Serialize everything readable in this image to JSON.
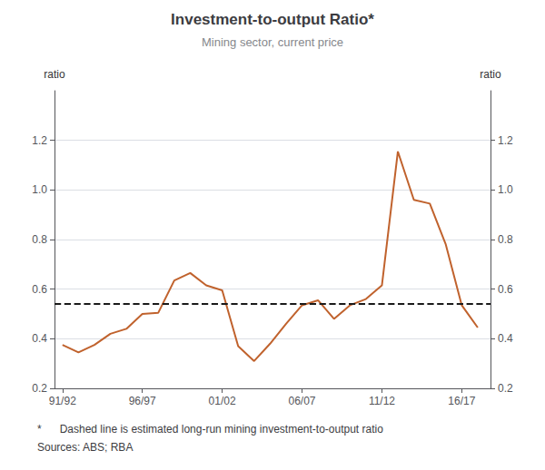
{
  "chart_data": {
    "type": "line",
    "title": "Investment-to-output Ratio*",
    "subtitle": "Mining sector, current price",
    "ylabel": "ratio",
    "y2label": "ratio",
    "annotations": [
      "*      Dashed line is estimated long-run mining investment-to-output ratio",
      "Sources: ABS; RBA"
    ],
    "x": [
      1991,
      1992,
      1993,
      1994,
      1995,
      1996,
      1997,
      1998,
      1999,
      2000,
      2001,
      2002,
      2003,
      2004,
      2005,
      2006,
      2007,
      2008,
      2009,
      2010,
      2011,
      2012,
      2013,
      2014,
      2015,
      2016,
      2017
    ],
    "values": [
      0.375,
      0.345,
      0.375,
      0.42,
      0.44,
      0.5,
      0.505,
      0.635,
      0.665,
      0.615,
      0.595,
      0.37,
      0.31,
      0.38,
      0.46,
      0.535,
      0.555,
      0.48,
      0.535,
      0.56,
      0.615,
      1.155,
      0.96,
      0.945,
      0.78,
      0.535,
      0.445
    ],
    "color": "#C0622D",
    "reference_lines": [
      {
        "value": 0.54,
        "color": "#1a1a1a",
        "line_style": "dashed"
      }
    ],
    "xlim": [
      1990.5,
      2017.8
    ],
    "xticks": [
      {
        "value": 1991,
        "label": "91/92"
      },
      {
        "value": 1996,
        "label": "96/97"
      },
      {
        "value": 2001,
        "label": "01/02"
      },
      {
        "value": 2006,
        "label": "06/07"
      },
      {
        "value": 2011,
        "label": "11/12"
      },
      {
        "value": 2016,
        "label": "16/17"
      }
    ],
    "ylim": [
      0.2,
      1.4
    ],
    "yticks": [
      0.2,
      0.4,
      0.6,
      0.8,
      {
        "value": 1.0,
        "label": "1.0"
      },
      1.2
    ],
    "y2lim": [
      0.2,
      1.4
    ],
    "y2ticks": [
      0.2,
      0.4,
      0.6,
      0.8,
      {
        "value": 1.0,
        "label": "1.0"
      },
      1.2
    ],
    "grid": true
  }
}
